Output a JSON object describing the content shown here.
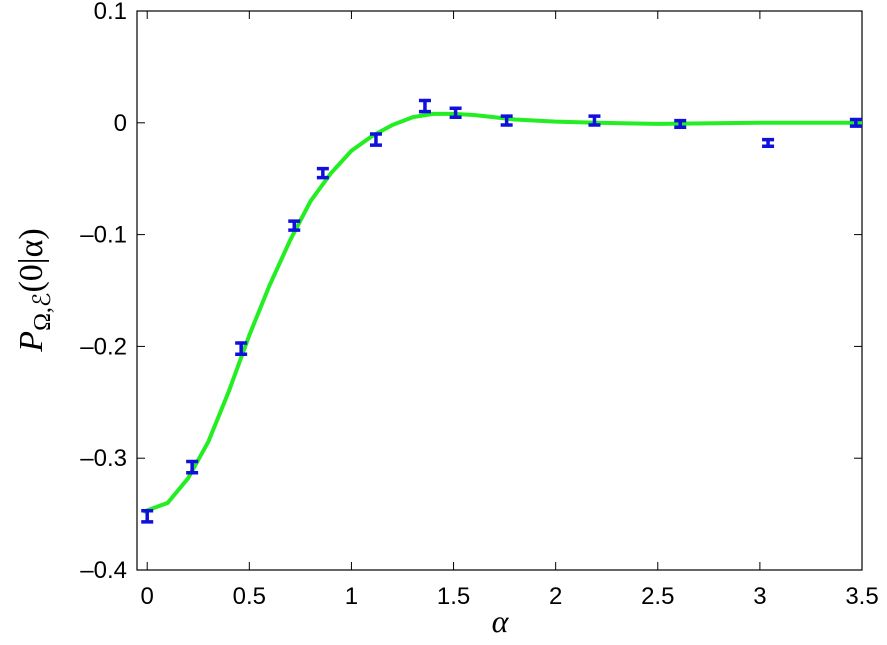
{
  "chart_data": {
    "type": "errorbar_line",
    "xlabel": "α",
    "ylabel_parts": [
      "P",
      "Ω,ℰ",
      "(0|α)"
    ],
    "xlim": [
      -0.05,
      3.5
    ],
    "ylim": [
      -0.4,
      0.1
    ],
    "xticks": [
      0,
      0.5,
      1,
      1.5,
      2,
      2.5,
      3,
      3.5
    ],
    "yticks": [
      {
        "value": -0.4,
        "label": "–0.4"
      },
      {
        "value": -0.3,
        "label": "–0.3"
      },
      {
        "value": -0.2,
        "label": "–0.2"
      },
      {
        "value": -0.1,
        "label": "–0.1"
      },
      0,
      0.1
    ],
    "grid": false,
    "series": [
      {
        "kind": "line",
        "color": "#22ee22",
        "x": [
          -0.02,
          0.1,
          0.2,
          0.3,
          0.4,
          0.5,
          0.6,
          0.7,
          0.8,
          0.9,
          1.0,
          1.1,
          1.2,
          1.3,
          1.4,
          1.5,
          1.6,
          1.7,
          1.8,
          2.0,
          2.2,
          2.5,
          3.0,
          3.5
        ],
        "values": [
          -0.348,
          -0.34,
          -0.318,
          -0.285,
          -0.24,
          -0.19,
          -0.145,
          -0.105,
          -0.07,
          -0.045,
          -0.025,
          -0.012,
          -0.002,
          0.005,
          0.008,
          0.008,
          0.007,
          0.005,
          0.003,
          0.001,
          0.0,
          -0.001,
          0.0,
          0.0
        ]
      },
      {
        "kind": "errorbar",
        "color": "#1010dd",
        "x": [
          0,
          0.22,
          0.46,
          0.72,
          0.86,
          1.12,
          1.36,
          1.51,
          1.76,
          2.19,
          2.61,
          3.04,
          3.47
        ],
        "values": [
          -0.352,
          -0.308,
          -0.202,
          -0.092,
          -0.045,
          -0.015,
          0.015,
          0.009,
          0.002,
          0.002,
          -0.001,
          -0.018,
          0.0
        ],
        "errors": [
          0.005,
          0.005,
          0.005,
          0.004,
          0.004,
          0.005,
          0.005,
          0.004,
          0.004,
          0.004,
          0.003,
          0.003,
          0.003
        ]
      }
    ]
  }
}
